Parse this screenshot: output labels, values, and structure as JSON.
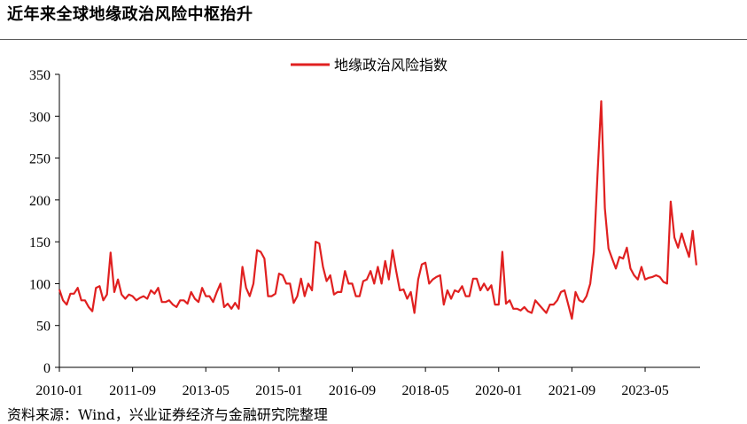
{
  "page": {
    "title": "近年来全球地缘政治风险中枢抬升",
    "source": "资料来源：Wind，兴业证券经济与金融研究院整理"
  },
  "chart_data": {
    "type": "line",
    "title": "",
    "xlabel": "",
    "ylabel": "",
    "ylim": [
      0,
      350
    ],
    "y_ticks": [
      0,
      50,
      100,
      150,
      200,
      250,
      300,
      350
    ],
    "x_ticks": [
      "2010-01",
      "2011-09",
      "2013-05",
      "2015-01",
      "2016-09",
      "2018-05",
      "2020-01",
      "2021-09",
      "2023-05"
    ],
    "grid": false,
    "legend": "top-center",
    "series": [
      {
        "name": "地缘政治风险指数",
        "color": "#e02020",
        "x_start": "2010-01",
        "x_end": "2024-07",
        "frequency": "monthly",
        "values": [
          93,
          80,
          75,
          88,
          88,
          95,
          80,
          80,
          72,
          67,
          95,
          97,
          80,
          87,
          137,
          90,
          105,
          87,
          82,
          87,
          85,
          80,
          83,
          85,
          82,
          92,
          88,
          95,
          78,
          78,
          80,
          75,
          72,
          80,
          80,
          76,
          90,
          82,
          78,
          95,
          85,
          85,
          78,
          90,
          100,
          72,
          76,
          70,
          77,
          70,
          120,
          95,
          85,
          100,
          140,
          138,
          130,
          85,
          85,
          88,
          112,
          110,
          100,
          100,
          77,
          85,
          106,
          85,
          100,
          92,
          150,
          148,
          120,
          103,
          110,
          87,
          90,
          90,
          115,
          100,
          100,
          85,
          85,
          103,
          105,
          115,
          100,
          120,
          100,
          127,
          105,
          140,
          115,
          92,
          93,
          82,
          90,
          65,
          105,
          123,
          125,
          100,
          105,
          108,
          110,
          75,
          92,
          82,
          92,
          90,
          97,
          85,
          85,
          106,
          106,
          92,
          100,
          92,
          98,
          75,
          75,
          138,
          76,
          80,
          70,
          70,
          68,
          72,
          67,
          65,
          80,
          75,
          70,
          65,
          75,
          75,
          80,
          90,
          92,
          75,
          58,
          90,
          80,
          78,
          85,
          100,
          138,
          230,
          318,
          190,
          142,
          130,
          118,
          132,
          130,
          143,
          118,
          110,
          105,
          120,
          105,
          107,
          108,
          110,
          108,
          102,
          100,
          198,
          155,
          143,
          160,
          145,
          132,
          163,
          122
        ]
      }
    ]
  }
}
